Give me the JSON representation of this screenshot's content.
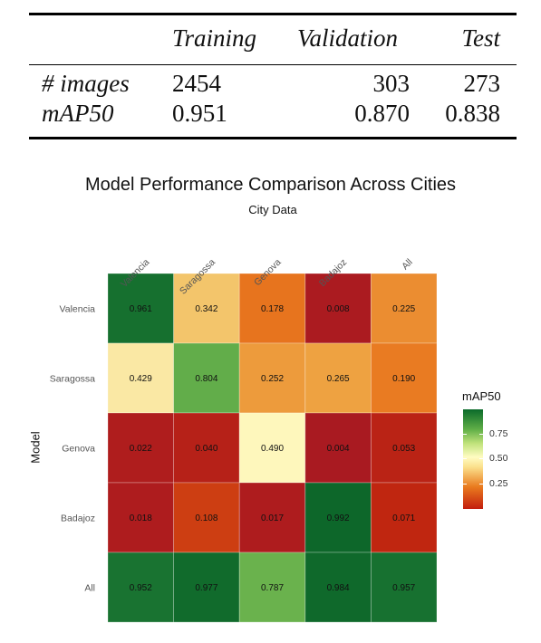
{
  "table": {
    "headers": [
      "Training",
      "Validation",
      "Test"
    ],
    "rows": [
      {
        "label": "# images",
        "values": [
          "2454",
          "303",
          "273"
        ]
      },
      {
        "label": "mAP50",
        "values": [
          "0.951",
          "0.870",
          "0.838"
        ]
      }
    ]
  },
  "chart_data": {
    "type": "heatmap",
    "title": "Model Performance Comparison Across Cities",
    "xlabel": "City Data",
    "ylabel": "Model",
    "x_categories": [
      "Valencia",
      "Saragossa",
      "Genova",
      "Badajoz",
      "All"
    ],
    "y_categories": [
      "Valencia",
      "Saragossa",
      "Genova",
      "Badajoz",
      "All"
    ],
    "values": [
      [
        0.961,
        0.342,
        0.178,
        0.008,
        0.225
      ],
      [
        0.429,
        0.804,
        0.252,
        0.265,
        0.19
      ],
      [
        0.022,
        0.04,
        0.49,
        0.004,
        0.053
      ],
      [
        0.018,
        0.108,
        0.017,
        0.992,
        0.071
      ],
      [
        0.952,
        0.977,
        0.787,
        0.984,
        0.957
      ]
    ],
    "cell_labels": [
      [
        "0.961",
        "0.342",
        "0.178",
        "0.008",
        "0.225"
      ],
      [
        "0.429",
        "0.804",
        "0.252",
        "0.265",
        "0.190"
      ],
      [
        "0.022",
        "0.040",
        "0.490",
        "0.004",
        "0.053"
      ],
      [
        "0.018",
        "0.108",
        "0.017",
        "0.992",
        "0.071"
      ],
      [
        "0.952",
        "0.977",
        "0.787",
        "0.984",
        "0.957"
      ]
    ],
    "legend": {
      "title": "mAP50",
      "ticks": [
        "0.75",
        "0.50",
        "0.25"
      ],
      "tick_values": [
        0.75,
        0.5,
        0.25
      ],
      "placement": "right",
      "range": [
        0,
        1
      ]
    },
    "colors": {
      "very_low": "#a81922",
      "low": "#c22b0e",
      "mid_low": "#e6781e",
      "mid": "#f0b850",
      "light": "#fbf6b8",
      "mid_high": "#73b44a",
      "high": "#0d6c2f"
    },
    "x_tick_rotation": "45deg",
    "grid": false
  }
}
